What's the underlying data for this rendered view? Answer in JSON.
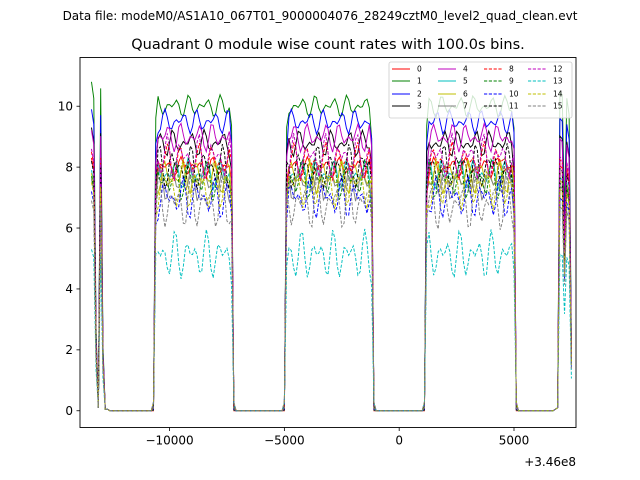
{
  "chart_data": {
    "type": "line",
    "suptitle": "Data file: modeM0/AS1A10_067T01_9000004076_28249cztM0_level2_quad_clean.evt",
    "title": "Quadrant 0 module wise count rates with 100.0s bins.",
    "xlabel": "",
    "ylabel": "",
    "x_offset_label": "+3.46e8",
    "xlim": [
      -13900,
      7700
    ],
    "ylim": [
      -0.55,
      11.6
    ],
    "xticks": [
      -10000,
      -5000,
      0,
      5000
    ],
    "xtick_labels": [
      "−10000",
      "−5000",
      "0",
      "5000"
    ],
    "yticks": [
      0,
      2,
      4,
      6,
      8,
      10
    ],
    "ytick_labels": [
      "0",
      "2",
      "4",
      "6",
      "8",
      "10"
    ],
    "legend_position": "top-right",
    "segments": [
      {
        "kind": "spike",
        "x": [
          -13400,
          -13300,
          -13200,
          -13100,
          -13000,
          -12900,
          -12800,
          -12700
        ]
      },
      {
        "kind": "active",
        "x_start": -10600,
        "x_end": -7300,
        "step": 100
      },
      {
        "kind": "active",
        "x_start": -4900,
        "x_end": -1200,
        "step": 100
      },
      {
        "kind": "active",
        "x_start": 1200,
        "x_end": 5000,
        "step": 100
      },
      {
        "kind": "spike",
        "x": [
          6800,
          6900,
          7000,
          7100,
          7200,
          7300,
          7400,
          7500
        ]
      }
    ],
    "series": [
      {
        "name": "0",
        "level": 8.0,
        "spike": 8.3,
        "color": "#ff0000",
        "dash": "solid"
      },
      {
        "name": "1",
        "level": 10.0,
        "spike": 10.8,
        "color": "#008000",
        "dash": "solid"
      },
      {
        "name": "2",
        "level": 9.5,
        "spike": 9.9,
        "color": "#0000ff",
        "dash": "solid"
      },
      {
        "name": "3",
        "level": 8.8,
        "spike": 9.3,
        "color": "#000000",
        "dash": "solid"
      },
      {
        "name": "4",
        "level": 9.0,
        "spike": 9.2,
        "color": "#bf00bf",
        "dash": "solid"
      },
      {
        "name": "5",
        "level": 7.8,
        "spike": 7.9,
        "color": "#00bfbf",
        "dash": "solid"
      },
      {
        "name": "6",
        "level": 7.7,
        "spike": 7.8,
        "color": "#bfbf00",
        "dash": "solid"
      },
      {
        "name": "7",
        "level": 7.5,
        "spike": 7.6,
        "color": "#808080",
        "dash": "solid"
      },
      {
        "name": "8",
        "level": 8.2,
        "spike": 8.5,
        "color": "#ff0000",
        "dash": "dashed"
      },
      {
        "name": "9",
        "level": 7.6,
        "spike": 7.7,
        "color": "#008000",
        "dash": "dashed"
      },
      {
        "name": "10",
        "level": 7.0,
        "spike": 7.2,
        "color": "#0000ff",
        "dash": "dashed"
      },
      {
        "name": "11",
        "level": 8.0,
        "spike": 8.2,
        "color": "#000000",
        "dash": "dashed"
      },
      {
        "name": "12",
        "level": 8.3,
        "spike": 8.6,
        "color": "#bf00bf",
        "dash": "dashed"
      },
      {
        "name": "13",
        "level": 5.1,
        "spike": 5.3,
        "color": "#00bfbf",
        "dash": "dashed"
      },
      {
        "name": "14",
        "level": 7.4,
        "spike": 7.5,
        "color": "#bfbf00",
        "dash": "dashed"
      },
      {
        "name": "15",
        "level": 6.8,
        "spike": 6.9,
        "color": "#808080",
        "dash": "dashed"
      }
    ]
  }
}
